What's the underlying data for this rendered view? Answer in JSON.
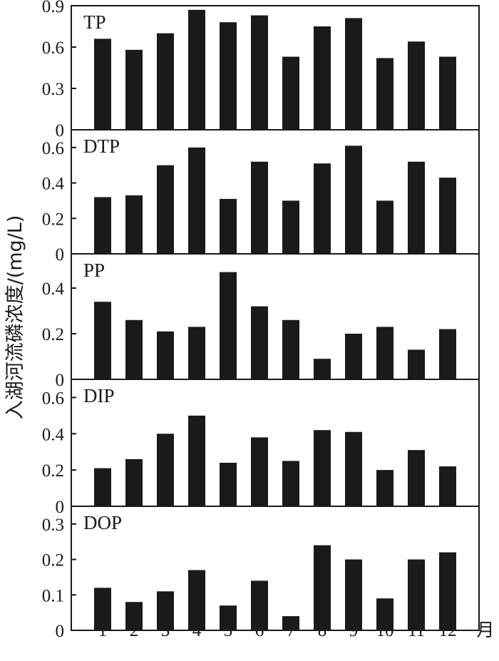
{
  "chart_data": {
    "type": "bar",
    "ylabel": "入湖河流磷浓度/(mg/L)",
    "x_unit": "月",
    "categories": [
      "1",
      "2",
      "3",
      "4",
      "5",
      "6",
      "7",
      "8",
      "9",
      "10",
      "11",
      "12"
    ],
    "bar_color": "#1a1a1a",
    "grid": false,
    "panels": [
      {
        "label": "TP",
        "ylim": [
          0,
          0.9
        ],
        "yticks": [
          "0",
          "0.3",
          "0.6",
          "0.9"
        ],
        "values": [
          0.66,
          0.58,
          0.7,
          0.87,
          0.78,
          0.83,
          0.53,
          0.75,
          0.81,
          0.52,
          0.64,
          0.53
        ]
      },
      {
        "label": "DTP",
        "ylim": [
          0,
          0.7
        ],
        "yticks": [
          "0",
          "0.2",
          "0.4",
          "0.6"
        ],
        "values": [
          0.32,
          0.33,
          0.5,
          0.6,
          0.31,
          0.52,
          0.3,
          0.51,
          0.61,
          0.3,
          0.52,
          0.43
        ]
      },
      {
        "label": "PP",
        "ylim": [
          0,
          0.55
        ],
        "yticks": [
          "0",
          "0.2",
          "0.4"
        ],
        "values": [
          0.34,
          0.26,
          0.21,
          0.23,
          0.47,
          0.32,
          0.26,
          0.09,
          0.2,
          0.23,
          0.13,
          0.22
        ]
      },
      {
        "label": "DIP",
        "ylim": [
          0,
          0.7
        ],
        "yticks": [
          "0",
          "0.2",
          "0.4",
          "0.6"
        ],
        "values": [
          0.21,
          0.26,
          0.4,
          0.5,
          0.24,
          0.38,
          0.25,
          0.42,
          0.41,
          0.2,
          0.31,
          0.22
        ]
      },
      {
        "label": "DOP",
        "ylim": [
          0,
          0.35
        ],
        "yticks": [
          "0",
          "0.1",
          "0.2",
          "0.3"
        ],
        "values": [
          0.12,
          0.08,
          0.11,
          0.17,
          0.07,
          0.14,
          0.04,
          0.24,
          0.2,
          0.09,
          0.2,
          0.22
        ]
      }
    ]
  }
}
